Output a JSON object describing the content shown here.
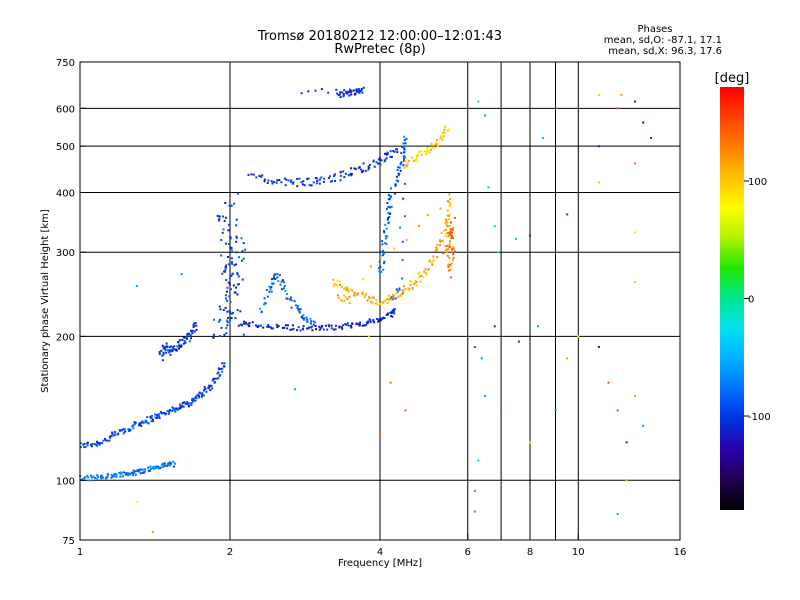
{
  "chart_data": {
    "type": "scatter",
    "title": "Tromsø 20180212 12:00:00–12:01:43",
    "subtitle": "RwPretec (8p)",
    "xlabel": "Frequency [MHz]",
    "ylabel": "Stationary phase Virtual Height [km]",
    "x_scale": "log",
    "y_scale": "log",
    "xlim": [
      1,
      16
    ],
    "ylim": [
      75,
      750
    ],
    "x_ticks": [
      "1",
      "2",
      "4",
      "6",
      "8",
      "10",
      "16"
    ],
    "y_ticks": [
      "75",
      "100",
      "200",
      "300",
      "400",
      "500",
      "600",
      "750"
    ],
    "grid": true,
    "stats": {
      "heading": "Phases",
      "o_line": "mean, sd,O:  -87.1, 17.1",
      "x_line": "mean, sd,X:  96.3, 17.6"
    },
    "colorbar": {
      "label": "[deg]",
      "range": [
        -180,
        180
      ],
      "ticks": [
        "100",
        "0",
        "-100"
      ],
      "colors": [
        "#000000",
        "#200050",
        "#2a00aa",
        "#0030e0",
        "#0070ff",
        "#00b0ff",
        "#00e0f0",
        "#00e890",
        "#20e800",
        "#b0f000",
        "#ffff00",
        "#ffc000",
        "#ff8000",
        "#ff4000",
        "#ff0000"
      ]
    },
    "series": [
      {
        "phase": -95,
        "spread": 0.01,
        "points": [
          [
            1.0,
            118
          ],
          [
            1.05,
            119
          ],
          [
            1.1,
            120
          ],
          [
            1.15,
            123
          ],
          [
            1.2,
            126
          ],
          [
            1.25,
            128
          ],
          [
            1.3,
            131
          ],
          [
            1.35,
            133
          ],
          [
            1.4,
            135
          ],
          [
            1.45,
            137
          ],
          [
            1.5,
            139
          ],
          [
            1.55,
            141
          ],
          [
            1.6,
            143
          ],
          [
            1.65,
            145
          ],
          [
            1.7,
            148
          ],
          [
            1.75,
            151
          ],
          [
            1.8,
            155
          ],
          [
            1.85,
            160
          ],
          [
            1.9,
            168
          ],
          [
            1.95,
            176
          ]
        ]
      },
      {
        "phase": -75,
        "spread": 0.008,
        "points": [
          [
            1.0,
            101
          ],
          [
            1.05,
            101
          ],
          [
            1.1,
            102
          ],
          [
            1.15,
            102
          ],
          [
            1.2,
            103
          ],
          [
            1.25,
            103
          ],
          [
            1.3,
            104
          ],
          [
            1.35,
            105
          ],
          [
            1.4,
            106
          ],
          [
            1.45,
            107
          ],
          [
            1.5,
            108
          ],
          [
            1.55,
            108
          ]
        ]
      },
      {
        "phase": -100,
        "spread": 0.015,
        "points": [
          [
            1.45,
            180
          ],
          [
            1.47,
            190
          ],
          [
            1.5,
            188
          ],
          [
            1.53,
            186
          ],
          [
            1.56,
            190
          ],
          [
            1.6,
            194
          ],
          [
            1.65,
            198
          ],
          [
            1.68,
            205
          ],
          [
            1.72,
            210
          ]
        ]
      },
      {
        "phase": -100,
        "spread": 0.04,
        "points": [
          [
            1.9,
            205
          ],
          [
            1.95,
            220
          ],
          [
            2.0,
            235
          ],
          [
            2.02,
            260
          ],
          [
            2.05,
            280
          ],
          [
            2.08,
            300
          ],
          [
            2.0,
            320
          ],
          [
            1.95,
            340
          ],
          [
            2.02,
            380
          ],
          [
            2.05,
            200
          ],
          [
            1.98,
            250
          ],
          [
            1.93,
            290
          ]
        ]
      },
      {
        "phase": -110,
        "spread": 0.008,
        "points": [
          [
            2.1,
            213
          ],
          [
            2.2,
            212
          ],
          [
            2.4,
            210
          ],
          [
            2.6,
            209
          ],
          [
            2.8,
            208
          ],
          [
            3.0,
            208
          ],
          [
            3.2,
            209
          ],
          [
            3.4,
            210
          ],
          [
            3.6,
            212
          ],
          [
            3.8,
            214
          ],
          [
            4.0,
            217
          ],
          [
            4.2,
            222
          ],
          [
            4.3,
            228
          ]
        ]
      },
      {
        "phase": -80,
        "spread": 0.012,
        "points": [
          [
            2.3,
            225
          ],
          [
            2.4,
            250
          ],
          [
            2.45,
            270
          ],
          [
            2.55,
            258
          ],
          [
            2.65,
            238
          ],
          [
            2.75,
            225
          ],
          [
            2.85,
            218
          ],
          [
            2.95,
            214
          ]
        ]
      },
      {
        "phase": -105,
        "spread": 0.012,
        "points": [
          [
            2.2,
            430
          ],
          [
            2.4,
            425
          ],
          [
            2.6,
            420
          ],
          [
            2.8,
            420
          ],
          [
            3.0,
            422
          ],
          [
            3.2,
            428
          ],
          [
            3.4,
            436
          ],
          [
            3.6,
            446
          ],
          [
            3.8,
            455
          ],
          [
            4.0,
            465
          ],
          [
            4.2,
            478
          ],
          [
            4.35,
            488
          ]
        ]
      },
      {
        "phase": -85,
        "spread": 0.012,
        "points": [
          [
            4.0,
            270
          ],
          [
            4.05,
            300
          ],
          [
            4.1,
            330
          ],
          [
            4.15,
            360
          ],
          [
            4.2,
            390
          ],
          [
            4.3,
            420
          ],
          [
            4.4,
            450
          ],
          [
            4.45,
            480
          ],
          [
            4.5,
            520
          ],
          [
            4.4,
            250
          ],
          [
            4.2,
            240
          ]
        ]
      },
      {
        "phase": -105,
        "spread": 0.008,
        "points": [
          [
            3.3,
            640
          ],
          [
            3.4,
            642
          ],
          [
            3.5,
            645
          ],
          [
            3.6,
            650
          ],
          [
            3.7,
            655
          ],
          [
            2.7,
            650
          ]
        ]
      },
      {
        "phase": 110,
        "spread": 0.012,
        "points": [
          [
            3.2,
            260
          ],
          [
            3.4,
            255
          ],
          [
            3.6,
            245
          ],
          [
            3.8,
            240
          ],
          [
            4.0,
            236
          ],
          [
            4.2,
            240
          ],
          [
            4.4,
            245
          ],
          [
            4.6,
            255
          ],
          [
            4.8,
            265
          ],
          [
            5.0,
            280
          ],
          [
            5.2,
            300
          ],
          [
            5.4,
            330
          ],
          [
            5.5,
            360
          ],
          [
            5.55,
            390
          ],
          [
            3.3,
            240
          ],
          [
            3.5,
            238
          ]
        ]
      },
      {
        "phase": 95,
        "spread": 0.012,
        "points": [
          [
            4.5,
            455
          ],
          [
            4.7,
            470
          ],
          [
            4.9,
            485
          ],
          [
            5.1,
            500
          ],
          [
            5.3,
            520
          ],
          [
            5.5,
            545
          ]
        ]
      },
      {
        "phase": 135,
        "spread": 0.012,
        "points": [
          [
            5.4,
            300
          ],
          [
            5.5,
            320
          ],
          [
            5.55,
            340
          ],
          [
            5.6,
            300
          ],
          [
            5.5,
            270
          ],
          [
            5.6,
            360
          ]
        ]
      }
    ],
    "scatter_points": [
      [
        1.3,
        255,
        -60
      ],
      [
        1.6,
        270,
        -60
      ],
      [
        6.3,
        620,
        -20
      ],
      [
        6.5,
        580,
        -60
      ],
      [
        6.6,
        410,
        -40
      ],
      [
        6.8,
        340,
        -30
      ],
      [
        6.9,
        300,
        -20
      ],
      [
        7.5,
        320,
        -40
      ],
      [
        8.0,
        325,
        -100
      ],
      [
        8.5,
        520,
        -50
      ],
      [
        9.5,
        360,
        -100
      ],
      [
        11.0,
        640,
        100
      ],
      [
        11.0,
        500,
        -110
      ],
      [
        11.0,
        420,
        100
      ],
      [
        12.0,
        600,
        140
      ],
      [
        12.2,
        640,
        120
      ],
      [
        13.0,
        620,
        -110
      ],
      [
        13.0,
        460,
        140
      ],
      [
        13.0,
        330,
        60
      ],
      [
        13.0,
        260,
        100
      ],
      [
        13.5,
        560,
        -120
      ],
      [
        14.0,
        520,
        -110
      ],
      [
        6.2,
        190,
        -90
      ],
      [
        6.3,
        110,
        -40
      ],
      [
        6.4,
        180,
        -60
      ],
      [
        6.5,
        150,
        -60
      ],
      [
        6.8,
        210,
        -110
      ],
      [
        7.0,
        140,
        -60
      ],
      [
        7.6,
        195,
        -110
      ],
      [
        8.0,
        120,
        80
      ],
      [
        8.3,
        210,
        -60
      ],
      [
        9.0,
        140,
        -60
      ],
      [
        9.5,
        180,
        120
      ],
      [
        10.0,
        200,
        80
      ],
      [
        11.0,
        190,
        -110
      ],
      [
        11.5,
        160,
        140
      ],
      [
        12.0,
        140,
        -60
      ],
      [
        12.5,
        100,
        100
      ],
      [
        12.5,
        120,
        -110
      ],
      [
        13.0,
        150,
        40
      ],
      [
        13.5,
        130,
        -60
      ],
      [
        6.2,
        95,
        -60
      ],
      [
        6.2,
        86,
        -60
      ],
      [
        12.0,
        85,
        -50
      ],
      [
        1.4,
        78,
        120
      ],
      [
        1.3,
        90,
        80
      ],
      [
        2.7,
        155,
        -60
      ],
      [
        3.8,
        200,
        100
      ],
      [
        4.2,
        160,
        130
      ],
      [
        4.0,
        125,
        140
      ],
      [
        4.5,
        140,
        140
      ]
    ]
  }
}
